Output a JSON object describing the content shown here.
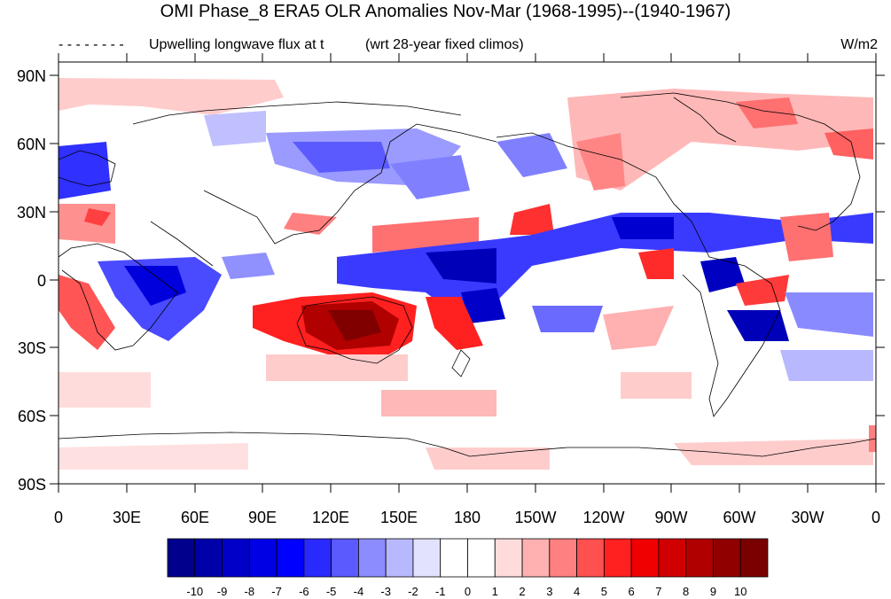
{
  "title": "OMI Phase_8 ERA5 OLR Anomalies Nov-Mar (1968-1995)--(1940-1967)",
  "subtitle_left": "- - - - - - - Upwelling longwave flux at top",
  "subtitle_overlap_a": "Upwelling longwave flux at (top",
  "subtitle_center": "(wrt 28-year fixed climos)",
  "units": "W/m2",
  "lat_labels": [
    "90N",
    "60N",
    "30N",
    "0",
    "30S",
    "60S",
    "90S"
  ],
  "lon_labels": [
    "0",
    "30E",
    "60E",
    "90E",
    "120E",
    "150E",
    "180",
    "150W",
    "120W",
    "90W",
    "60W",
    "30W",
    "0"
  ],
  "colorbar": {
    "labels": [
      "-10",
      "-9",
      "-8",
      "-7",
      "-6",
      "-5",
      "-4",
      "-3",
      "-2",
      "-1",
      "0",
      "1",
      "2",
      "3",
      "4",
      "5",
      "6",
      "7",
      "8",
      "9",
      "10"
    ],
    "colors": [
      "#00008c",
      "#0000a8",
      "#0000c8",
      "#0000e4",
      "#0000ff",
      "#2a2aff",
      "#5a5aff",
      "#8c8cff",
      "#b8b8ff",
      "#e2e2ff",
      "#ffffff",
      "#ffffff",
      "#ffdcdc",
      "#ffb0b0",
      "#ff8080",
      "#ff5050",
      "#ff2020",
      "#f00000",
      "#d00000",
      "#b00000",
      "#900000",
      "#7a0000"
    ]
  },
  "colors": {
    "positive_accent": "#b00000",
    "negative_accent": "#0000b8"
  }
}
